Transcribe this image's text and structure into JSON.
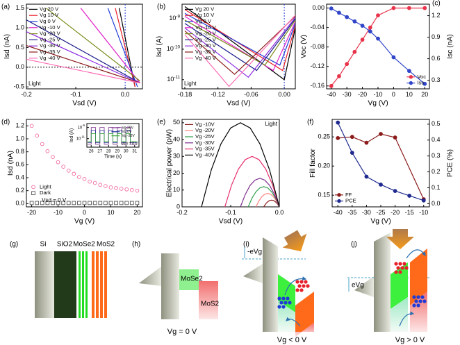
{
  "chart_data": [
    {
      "type": "line",
      "panel": "(a)",
      "xlabel": "Vsd (V)",
      "ylabel": "Isd (nA)",
      "xlim": [
        -0.2,
        0.035
      ],
      "ylim": [
        -0.55,
        1.6
      ],
      "xticks": [
        -0.2,
        -0.1,
        {
          "value": 0,
          "label": "0.0"
        }
      ],
      "yticks": [
        -0.5,
        {
          "value": 0,
          "label": "0.0"
        },
        0.5,
        {
          "value": 1,
          "label": "1.0"
        },
        1.5
      ],
      "zero_lines": [
        "x",
        "y"
      ],
      "legend": "upper left",
      "annotations": [
        "Light"
      ],
      "series": [
        {
          "name": "Vg 20 V",
          "color": "#000000",
          "x": [
            -0.012,
            0.02
          ],
          "values": [
            1.5,
            -0.5
          ]
        },
        {
          "name": "Vg 10 V",
          "color": "#e8202a",
          "x": [
            -0.02,
            0.02
          ],
          "values": [
            1.5,
            -0.5
          ]
        },
        {
          "name": "Vg 0 V",
          "color": "#1f3bd6",
          "x": [
            -0.035,
            0.025
          ],
          "values": [
            1.5,
            -0.5
          ]
        },
        {
          "name": "Vg -10 V",
          "color": "#e020c8",
          "x": [
            -0.09,
            0.03
          ],
          "values": [
            1.5,
            -0.4
          ]
        },
        {
          "name": "Vg -20 V",
          "color": "#7a8a1a",
          "x": [
            -0.16,
            0.03
          ],
          "values": [
            1.5,
            -0.35
          ]
        },
        {
          "name": "Vg -25 V",
          "color": "#1a1a8a",
          "x": [
            -0.2,
            0.03
          ],
          "values": [
            1.2,
            -0.4
          ]
        },
        {
          "name": "Vg -30 V",
          "color": "#8a2be2",
          "x": [
            -0.2,
            0.03
          ],
          "values": [
            0.9,
            -0.4
          ]
        },
        {
          "name": "Vg -35 V",
          "color": "#8b1a1a",
          "x": [
            -0.2,
            0.03
          ],
          "values": [
            0.55,
            -0.4
          ]
        },
        {
          "name": "Vg -40 V",
          "color": "#ff69b4",
          "x": [
            -0.2,
            0.03
          ],
          "values": [
            0.2,
            -0.4
          ]
        }
      ]
    },
    {
      "type": "line",
      "panel": "(b)",
      "xlabel": "Vsd (V)",
      "ylabel": "Isd (A)",
      "log_y": true,
      "xlim": [
        -0.185,
        0.02
      ],
      "ylim": [
        5e-12,
        3e-09
      ],
      "xticks": [
        -0.18,
        -0.12,
        -0.06,
        {
          "value": 0,
          "label": "0.00"
        }
      ],
      "yticks": [
        {
          "value": 1e-11,
          "label": "10-11"
        },
        {
          "value": 1e-10,
          "label": "10-10"
        },
        {
          "value": 1e-09,
          "label": "10-9"
        }
      ],
      "zero_lines": [
        "x"
      ],
      "legend": "upper left",
      "annotations": [
        "Light"
      ],
      "series": [
        {
          "name": "Vg 20 V",
          "color": "#000000",
          "x": [
            -0.18,
            0.0,
            0.02
          ],
          "values": [
            2.5e-09,
            1e-11,
            5e-10
          ]
        },
        {
          "name": "Vg 10 V",
          "color": "#e8202a",
          "x": [
            -0.18,
            -0.003,
            0.02
          ],
          "values": [
            2e-09,
            2e-11,
            6e-10
          ]
        },
        {
          "name": "Vg 0 V",
          "color": "#1f3bd6",
          "x": [
            -0.18,
            -0.008,
            0.02
          ],
          "values": [
            1.5e-09,
            3e-11,
            7e-10
          ]
        },
        {
          "name": "Vg -10 V",
          "color": "#e020c8",
          "x": [
            -0.18,
            -0.02,
            0.02
          ],
          "values": [
            1.2e-09,
            2e-11,
            8e-10
          ]
        },
        {
          "name": "Vg -20 V",
          "color": "#7a8a1a",
          "x": [
            -0.18,
            -0.035,
            0.02
          ],
          "values": [
            9e-10,
            3e-11,
            9e-10
          ]
        },
        {
          "name": "Vg -25 V",
          "color": "#1a1a8a",
          "x": [
            -0.18,
            -0.05,
            0.02
          ],
          "values": [
            7e-10,
            2e-11,
            1e-09
          ]
        },
        {
          "name": "Vg -30 V",
          "color": "#8a2be2",
          "x": [
            -0.18,
            -0.065,
            0.02
          ],
          "values": [
            5e-10,
            1.2e-11,
            1.1e-09
          ]
        },
        {
          "name": "Vg -35 V",
          "color": "#8b1a1a",
          "x": [
            -0.18,
            -0.09,
            0.02
          ],
          "values": [
            4e-10,
            1.5e-11,
            1.2e-09
          ]
        },
        {
          "name": "Vg -40 V",
          "color": "#ff69b4",
          "x": [
            -0.18,
            -0.1,
            0.02
          ],
          "values": [
            3e-10,
            6e-12,
            1.3e-09
          ]
        }
      ]
    },
    {
      "type": "line",
      "panel": "(c)",
      "xlabel": "Vg (V)",
      "ylabel": "Voc (V)",
      "y2label": "Isc (nA)",
      "xlim": [
        -43,
        23
      ],
      "ylim": [
        -0.166,
        0.008
      ],
      "y2lim": [
        0.18,
        1.36
      ],
      "xticks": [
        -40,
        -30,
        -20,
        -10,
        0,
        10,
        20
      ],
      "yticks": [
        -0.16,
        -0.12,
        -0.08,
        -0.04,
        {
          "value": 0,
          "label": "0.00"
        }
      ],
      "y2ticks": [
        0.3,
        0.6,
        0.9,
        1.2
      ],
      "legend": "lower right",
      "x": [
        -40,
        -35,
        -30,
        -25,
        -20,
        -15,
        -10,
        0,
        10,
        20
      ],
      "series": [
        {
          "name": "Voc",
          "color": "#e8334a",
          "marker": "circle",
          "values": [
            -0.16,
            -0.14,
            -0.115,
            -0.09,
            -0.065,
            -0.04,
            -0.015,
            0,
            0,
            0
          ]
        },
        {
          "name": "Isc",
          "color": "#3045c8",
          "marker": "circle",
          "axis": "y2",
          "values": [
            1.3,
            1.24,
            1.18,
            1.12,
            1.06,
            0.98,
            0.88,
            0.62,
            0.43,
            0.25
          ]
        }
      ]
    },
    {
      "type": "scatter",
      "panel": "(d)",
      "xlabel": "Vg (V)",
      "ylabel": "Isd (nA)",
      "xlim": [
        -22,
        22
      ],
      "ylim": [
        -0.05,
        1.3
      ],
      "xticks": [
        -20,
        -10,
        0,
        10,
        20
      ],
      "yticks": [
        {
          "value": 0,
          "label": "0.0"
        },
        0.2,
        0.4,
        0.6,
        0.8,
        {
          "value": 1,
          "label": "1.0"
        },
        1.2
      ],
      "legend": "lower left",
      "annotations": [
        "Vsd = 0 V"
      ],
      "x": [
        -20,
        -18,
        -16,
        -14,
        -12,
        -10,
        -8,
        -6,
        -4,
        -2,
        0,
        2,
        4,
        6,
        8,
        10,
        12,
        14,
        16,
        18,
        20
      ],
      "series": [
        {
          "name": "Light",
          "color": "#f06aa0",
          "marker": "circle",
          "values": [
            1.2,
            1.05,
            0.92,
            0.81,
            0.72,
            0.64,
            0.57,
            0.51,
            0.46,
            0.41,
            0.38,
            0.34,
            0.32,
            0.29,
            0.27,
            0.25,
            0.24,
            0.23,
            0.22,
            0.21,
            0.2
          ]
        },
        {
          "name": "Dark",
          "color": "#555555",
          "marker": "square",
          "values": [
            0.01,
            0.01,
            0.01,
            0.01,
            0.01,
            0.01,
            0.01,
            0.01,
            0.01,
            0.01,
            0.01,
            0.01,
            0.01,
            0.01,
            0.01,
            0.01,
            0.01,
            0.01,
            0.01,
            0.01,
            0.01
          ]
        }
      ]
    },
    {
      "type": "line",
      "xlabel": "Time (s)",
      "ylabel": "Isd (A)",
      "log_y": true,
      "xlim": [
        25.5,
        31.5
      ],
      "ylim": [
        3e-13,
        5e-09
      ],
      "xticks": [
        26,
        27,
        28,
        29,
        30,
        31
      ],
      "yticks": [
        {
          "value": 1e-11,
          "label": "10-11"
        },
        {
          "value": 1e-09,
          "label": "10-9"
        }
      ],
      "legend": "upper right",
      "annotations": [
        "Vsd = 0 V"
      ],
      "x": [
        25.6,
        26,
        26,
        26.5,
        26.5,
        27,
        27,
        27.5,
        27.5,
        28,
        28,
        28.5,
        28.5,
        29,
        29,
        29.5,
        29.5,
        30,
        30,
        30.5,
        30.5,
        31.3
      ],
      "series": [
        {
          "name": "Vg 20V",
          "color": "#7b2d8e",
          "values": [
            1e-12,
            1e-12,
            1e-09,
            1e-09,
            1e-12,
            1e-12,
            1e-09,
            1e-09,
            1e-12,
            1e-12,
            1e-09,
            1e-09,
            1e-12,
            1e-12,
            1e-09,
            1e-09,
            1e-12,
            1e-12,
            1e-09,
            1e-09,
            1e-12,
            1e-12
          ]
        },
        {
          "name": "Vg 0V",
          "color": "#1f2a8f",
          "values": [
            2e-12,
            2e-12,
            3e-10,
            3e-10,
            2e-12,
            2e-12,
            3e-10,
            3e-10,
            2e-12,
            2e-12,
            3e-10,
            3e-10,
            2e-12,
            2e-12,
            3e-10,
            3e-10,
            2e-12,
            2e-12,
            3e-10,
            3e-10,
            2e-12,
            2e-12
          ]
        },
        {
          "name": "Vg -20V",
          "color": "#3aa63a",
          "values": [
            3e-12,
            3e-12,
            8e-11,
            8e-11,
            3e-12,
            3e-12,
            8e-11,
            8e-11,
            3e-12,
            3e-12,
            8e-11,
            8e-11,
            3e-12,
            3e-12,
            8e-11,
            8e-11,
            3e-12,
            3e-12,
            8e-11,
            8e-11,
            3e-12,
            3e-12
          ]
        }
      ]
    },
    {
      "type": "line",
      "panel": "(e)",
      "xlabel": "Vsd (V)",
      "ylabel": "Electrical power (pW)",
      "xlim": [
        -0.2,
        0.0
      ],
      "ylim": [
        0,
        52
      ],
      "xticks": [
        -0.2,
        -0.1,
        {
          "value": 0,
          "label": "0.0"
        }
      ],
      "yticks": [
        0,
        10,
        20,
        30,
        40,
        50
      ],
      "legend": "upper left",
      "annotations": [
        "Light"
      ],
      "series": [
        {
          "name": "Vg -10V",
          "color": "#8b1a1a",
          "x": [
            -0.032,
            -0.028,
            -0.024,
            -0.02,
            -0.016,
            -0.012,
            -0.008,
            -0.004,
            0
          ],
          "values": [
            0,
            1.8,
            3,
            3.8,
            4,
            3.8,
            3,
            1.8,
            0
          ]
        },
        {
          "name": "Vg -20V",
          "color": "#ff7f7f",
          "x": [
            -0.048,
            -0.042,
            -0.036,
            -0.03,
            -0.024,
            -0.018,
            -0.012,
            -0.006,
            0
          ],
          "values": [
            0,
            3.5,
            6,
            7.5,
            8,
            7.5,
            6,
            3.5,
            0
          ]
        },
        {
          "name": "Vg -25V",
          "color": "#2e9e4a",
          "x": [
            -0.064,
            -0.056,
            -0.048,
            -0.04,
            -0.032,
            -0.024,
            -0.016,
            -0.008,
            0
          ],
          "values": [
            0,
            5.3,
            9,
            11.3,
            12,
            11.3,
            9,
            5.3,
            0
          ]
        },
        {
          "name": "Vg -30V",
          "color": "#7b2d8e",
          "x": [
            -0.08,
            -0.07,
            -0.06,
            -0.05,
            -0.04,
            -0.03,
            -0.02,
            -0.01,
            0
          ],
          "values": [
            0,
            7.4,
            12.8,
            15.9,
            17,
            15.9,
            12.8,
            7.4,
            0
          ]
        },
        {
          "name": "Vg -35V",
          "color": "#e8306a",
          "x": [
            -0.112,
            -0.098,
            -0.084,
            -0.07,
            -0.056,
            -0.042,
            -0.028,
            -0.014,
            0
          ],
          "values": [
            0,
            13.1,
            22.5,
            28.1,
            30,
            28.1,
            22.5,
            13.1,
            0
          ]
        },
        {
          "name": "Vg -40V",
          "color": "#000000",
          "x": [
            -0.16,
            -0.14,
            -0.12,
            -0.1,
            -0.08,
            -0.06,
            -0.04,
            -0.02,
            0
          ],
          "values": [
            0,
            21.9,
            37.5,
            46.9,
            50,
            46.9,
            37.5,
            21.9,
            0
          ]
        }
      ]
    },
    {
      "type": "line",
      "panel": "(f)",
      "xlabel": "Vg (V)",
      "ylabel": "Fill factor",
      "y2label": "PCE (%)",
      "xlim": [
        -42,
        -8
      ],
      "ylim": [
        0.13,
        0.28
      ],
      "y2lim": [
        -0.02,
        0.53
      ],
      "xticks": [
        -40,
        -35,
        -30,
        -25,
        -20,
        -15,
        -10
      ],
      "yticks": [
        0.15,
        {
          "value": 0.2,
          "label": "0.20"
        },
        0.25
      ],
      "y2ticks": [
        {
          "value": 0,
          "label": "0.0"
        },
        0.1,
        0.2,
        0.3,
        0.4,
        0.5
      ],
      "legend": "lower left",
      "series": [
        {
          "name": "FF",
          "color": "#8b1a1a",
          "marker": "circle",
          "x": [
            -40,
            -35,
            -30,
            -25,
            -20,
            -10
          ],
          "values": [
            0.248,
            0.25,
            0.24,
            0.255,
            0.249,
            0.143
          ]
        },
        {
          "name": "PCE",
          "color": "#1f2a8f",
          "marker": "circle",
          "axis": "y2",
          "x": [
            -40,
            -35,
            -30,
            -25,
            -20,
            -15,
            -10
          ],
          "values": [
            0.51,
            0.32,
            0.17,
            0.12,
            0.08,
            0.05,
            0.02
          ]
        }
      ]
    }
  ],
  "diagrams": [
    {
      "label": "(g)",
      "texts": [
        "Si",
        "SiO2",
        "MoSe2",
        "MoS2"
      ]
    },
    {
      "label": "(h)",
      "texts": [
        "MoSe2",
        "MoS2",
        "Vg = 0 V"
      ]
    },
    {
      "label": "(i)",
      "texts": [
        "-eVg",
        "Vg < 0 V"
      ]
    },
    {
      "label": "(j)",
      "texts": [
        "eVg",
        "Vg > 0 V"
      ]
    }
  ]
}
